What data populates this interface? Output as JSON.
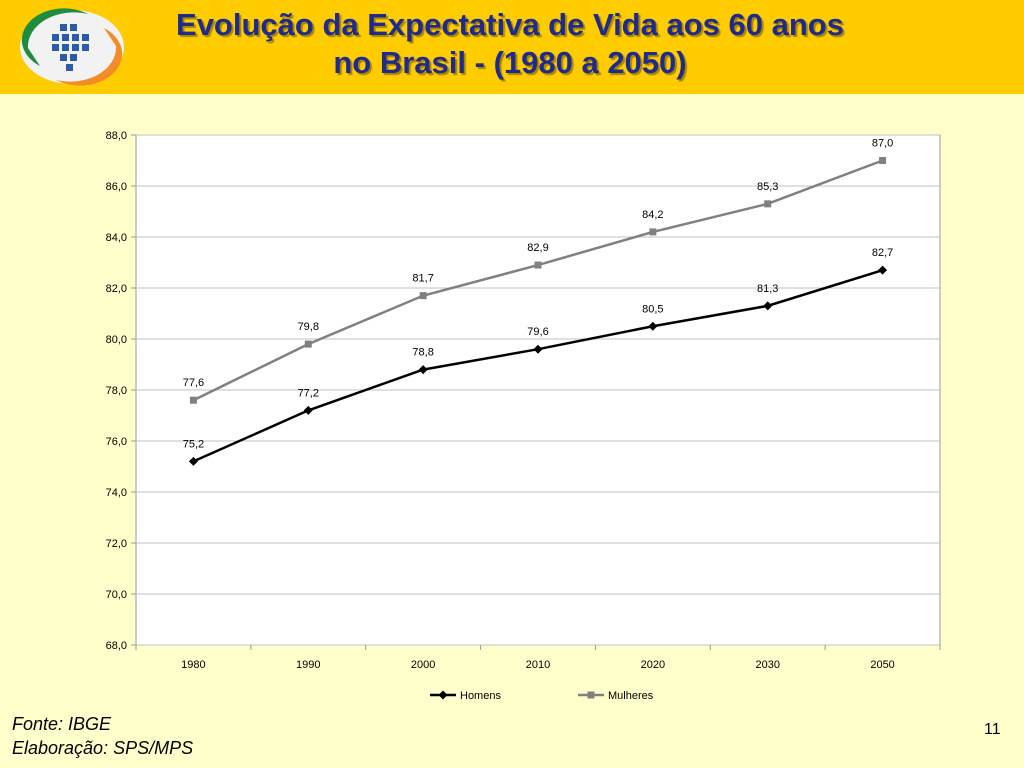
{
  "slide": {
    "title_line1": "Evolução da Expectativa de Vida aos 60 anos",
    "title_line2": "no Brasil - (1980 a 2050)",
    "source": "Fonte: IBGE",
    "elaboration": "Elaboração: SPS/MPS",
    "page_number": "11"
  },
  "colors": {
    "header_bg": "#FFCC00",
    "slide_bg": "#FFFFCC",
    "title_color": "#1F2A8C",
    "homens": "#000000",
    "mulheres": "#808080"
  },
  "chart_data": {
    "type": "line",
    "categories": [
      "1980",
      "1990",
      "2000",
      "2010",
      "2020",
      "2030",
      "2050"
    ],
    "series": [
      {
        "name": "Homens",
        "values": [
          75.2,
          77.2,
          78.8,
          79.6,
          80.5,
          81.3,
          82.7
        ],
        "labels": [
          "75,2",
          "77,2",
          "78,8",
          "79,6",
          "80,5",
          "81,3",
          "82,7"
        ],
        "marker": "diamond",
        "color": "#000000"
      },
      {
        "name": "Mulheres",
        "values": [
          77.6,
          79.8,
          81.7,
          82.9,
          84.2,
          85.3,
          87.0
        ],
        "labels": [
          "77,6",
          "79,8",
          "81,7",
          "82,9",
          "84,2",
          "85,3",
          "87,0"
        ],
        "marker": "square",
        "color": "#808080"
      }
    ],
    "ylim": [
      68,
      88
    ],
    "yticks": [
      68,
      70,
      72,
      74,
      76,
      78,
      80,
      82,
      84,
      86,
      88
    ],
    "ytick_labels": [
      "68,0",
      "70,0",
      "72,0",
      "74,0",
      "76,0",
      "78,0",
      "80,0",
      "82,0",
      "84,0",
      "86,0",
      "88,0"
    ],
    "grid": true,
    "legend_position": "bottom"
  }
}
